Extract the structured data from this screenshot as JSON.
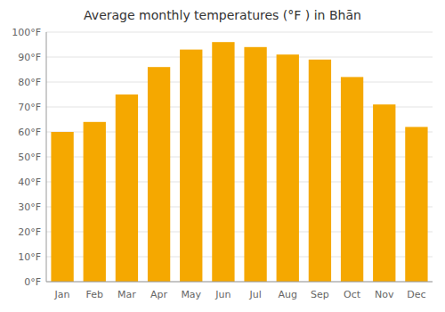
{
  "chart_data": {
    "type": "bar",
    "title": "Average monthly temperatures (°F ) in Bhān",
    "categories": [
      "Jan",
      "Feb",
      "Mar",
      "Apr",
      "May",
      "Jun",
      "Jul",
      "Aug",
      "Sep",
      "Oct",
      "Nov",
      "Dec"
    ],
    "values": [
      60,
      64,
      75,
      86,
      93,
      96,
      94,
      91,
      89,
      82,
      71,
      62
    ],
    "color": "#F5A800",
    "ylim": [
      0,
      100
    ],
    "yticks": [
      {
        "value": 0,
        "label": "0°F"
      },
      {
        "value": 10,
        "label": "10°F"
      },
      {
        "value": 20,
        "label": "20°F"
      },
      {
        "value": 30,
        "label": "30°F"
      },
      {
        "value": 40,
        "label": "40°F"
      },
      {
        "value": 50,
        "label": "50°F"
      },
      {
        "value": 60,
        "label": "60°F"
      },
      {
        "value": 70,
        "label": "70°F"
      },
      {
        "value": 80,
        "label": "80°F"
      },
      {
        "value": 90,
        "label": "90°F"
      },
      {
        "value": 100,
        "label": "100°F"
      }
    ],
    "grid": true
  }
}
